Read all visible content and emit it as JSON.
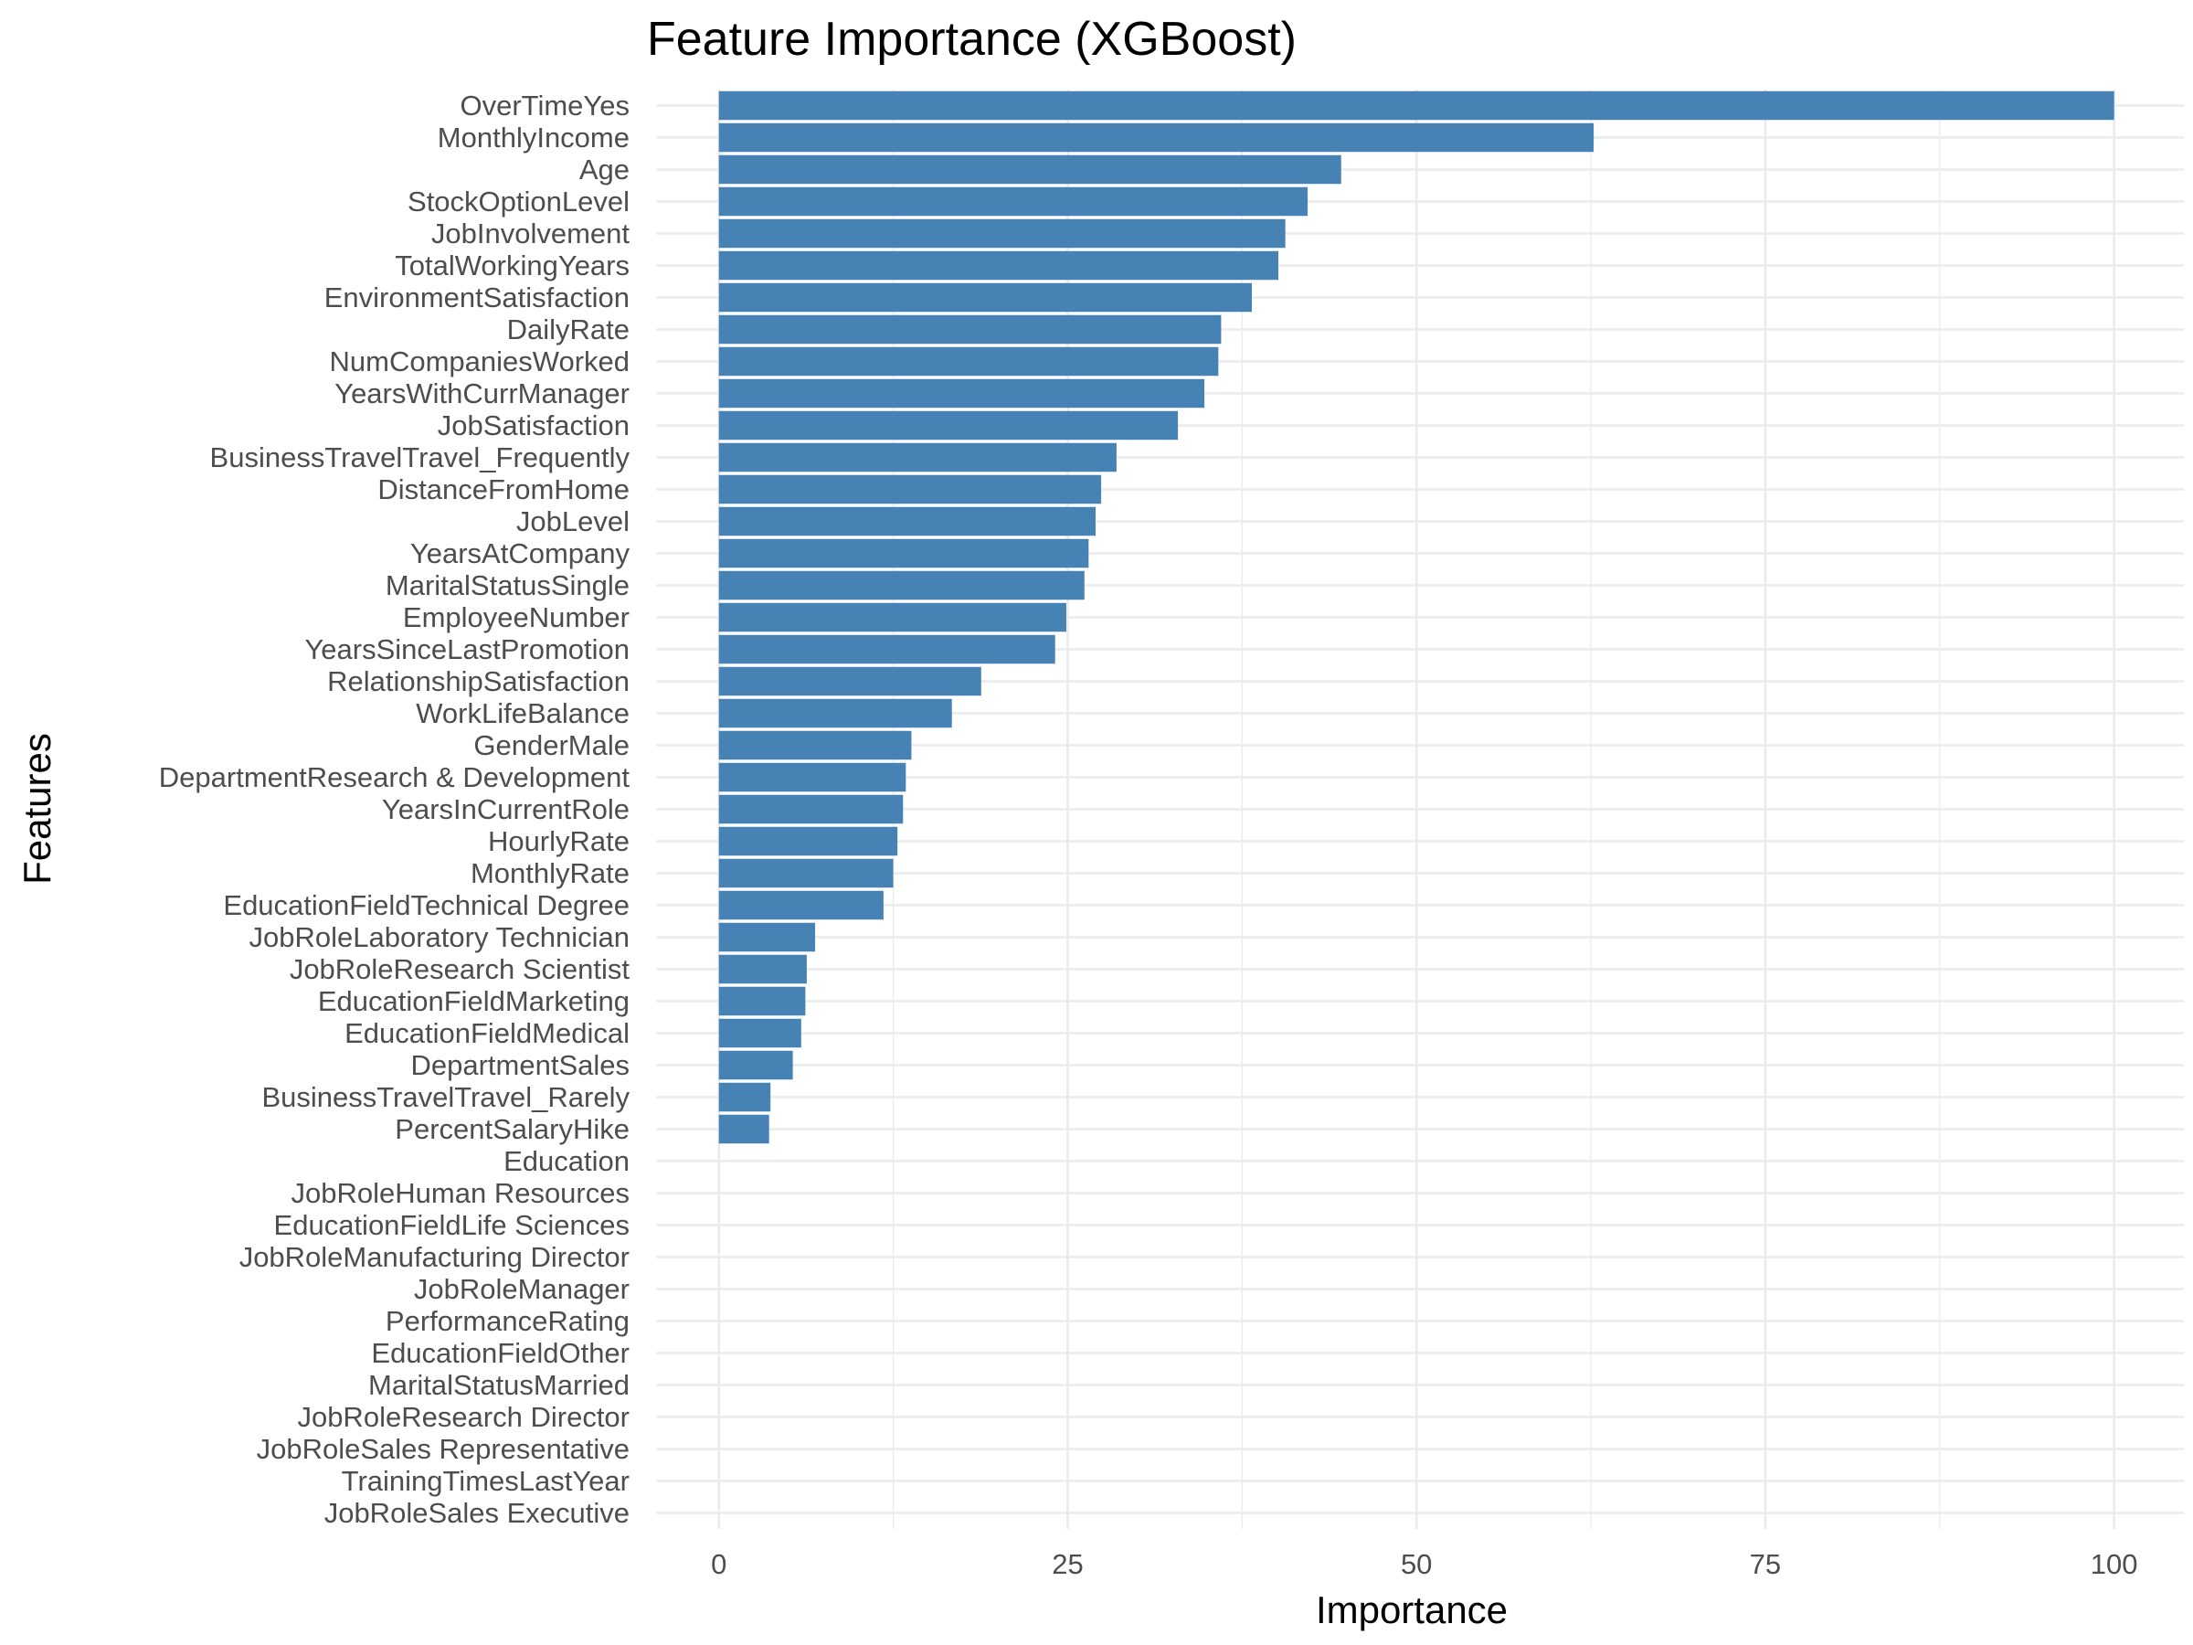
{
  "chart_data": {
    "type": "bar",
    "orientation": "horizontal",
    "title": "Feature Importance (XGBoost)",
    "xlabel": "Importance",
    "ylabel": "Features",
    "xlim": [
      -4.5,
      105
    ],
    "xticks": [
      0,
      25,
      50,
      75,
      100
    ],
    "grid": true,
    "bar_color": "#4682b4",
    "categories": [
      "OverTimeYes",
      "MonthlyIncome",
      "Age",
      "StockOptionLevel",
      "JobInvolvement",
      "TotalWorkingYears",
      "EnvironmentSatisfaction",
      "DailyRate",
      "NumCompaniesWorked",
      "YearsWithCurrManager",
      "JobSatisfaction",
      "BusinessTravelTravel_Frequently",
      "DistanceFromHome",
      "JobLevel",
      "YearsAtCompany",
      "MaritalStatusSingle",
      "EmployeeNumber",
      "YearsSinceLastPromotion",
      "RelationshipSatisfaction",
      "WorkLifeBalance",
      "GenderMale",
      "DepartmentResearch & Development",
      "YearsInCurrentRole",
      "HourlyRate",
      "MonthlyRate",
      "EducationFieldTechnical Degree",
      "JobRoleLaboratory Technician",
      "JobRoleResearch Scientist",
      "EducationFieldMarketing",
      "EducationFieldMedical",
      "DepartmentSales",
      "BusinessTravelTravel_Rarely",
      "PercentSalaryHike",
      "Education",
      "JobRoleHuman Resources",
      "EducationFieldLife Sciences",
      "JobRoleManufacturing Director",
      "JobRoleManager",
      "PerformanceRating",
      "EducationFieldOther",
      "MaritalStatusMarried",
      "JobRoleResearch Director",
      "JobRoleSales Representative",
      "TrainingTimesLastYear",
      "JobRoleSales Executive"
    ],
    "values": [
      100,
      62.7,
      44.6,
      42.2,
      40.6,
      40.1,
      38.2,
      36.0,
      35.8,
      34.8,
      32.9,
      28.5,
      27.4,
      27.0,
      26.5,
      26.2,
      24.9,
      24.1,
      18.8,
      16.7,
      13.8,
      13.4,
      13.2,
      12.8,
      12.5,
      11.8,
      6.9,
      6.3,
      6.2,
      5.9,
      5.3,
      3.7,
      3.6,
      0,
      0,
      0,
      0,
      0,
      0,
      0,
      0,
      0,
      0,
      0,
      0
    ]
  }
}
